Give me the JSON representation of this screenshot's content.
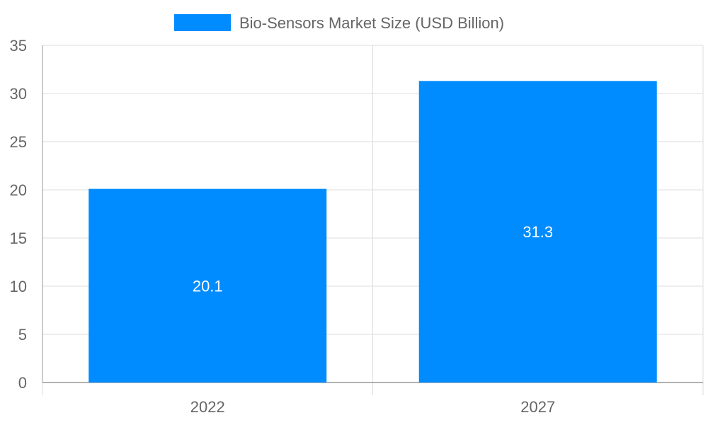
{
  "chart_data": {
    "type": "bar",
    "categories": [
      "2022",
      "2027"
    ],
    "series": [
      {
        "name": "Bio-Sensors Market Size (USD Billion)",
        "values": [
          20.1,
          31.3
        ],
        "color": "#008cff"
      }
    ],
    "data_labels": [
      "20.1",
      "31.3"
    ],
    "ylim": [
      0,
      35
    ],
    "y_ticks": [
      0,
      5,
      10,
      15,
      20,
      25,
      30,
      35
    ],
    "legend_position": "top-center",
    "grid": true
  },
  "legend": {
    "label": "Bio-Sensors Market Size (USD Billion)",
    "color": "#008cff"
  }
}
